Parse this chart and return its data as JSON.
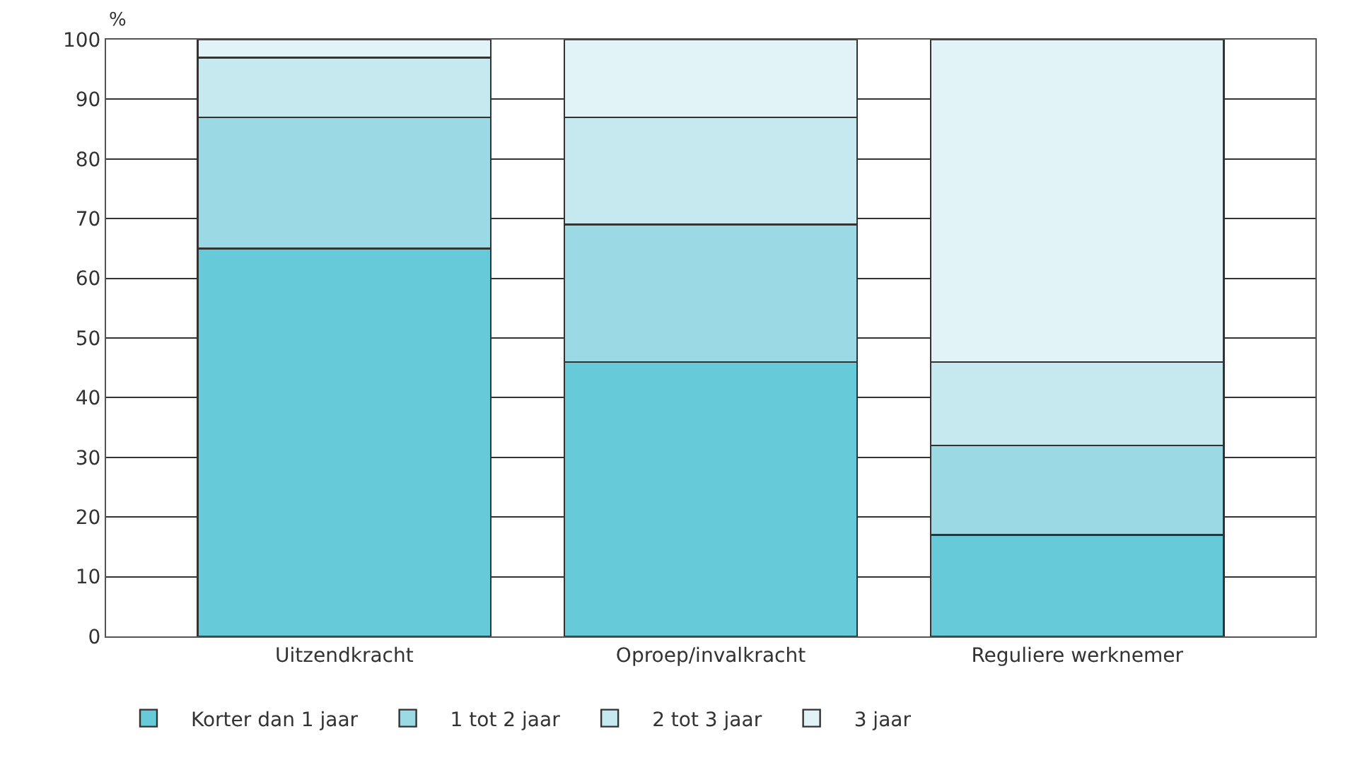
{
  "chart_data": {
    "type": "bar",
    "stacked": true,
    "ylabel": "%",
    "categories": [
      "Uitzendkracht",
      "Oproep/invalkracht",
      "Reguliere werknemer"
    ],
    "series": [
      {
        "name": "Korter dan 1 jaar",
        "color": "#66cad9",
        "values": [
          65,
          46,
          17
        ]
      },
      {
        "name": "1 tot 2 jaar",
        "color": "#9bd9e4",
        "values": [
          22,
          23,
          15
        ]
      },
      {
        "name": "2 tot 3 jaar",
        "color": "#c6e8ef",
        "values": [
          10,
          18,
          14
        ]
      },
      {
        "name": "3 jaar",
        "color": "#e1f3f6",
        "values": [
          3,
          13,
          54
        ]
      }
    ],
    "ylim": [
      0,
      100
    ],
    "yticks": [
      0,
      10,
      20,
      30,
      40,
      50,
      60,
      70,
      80,
      90,
      100
    ],
    "grid": "y",
    "legend": "bottom"
  }
}
